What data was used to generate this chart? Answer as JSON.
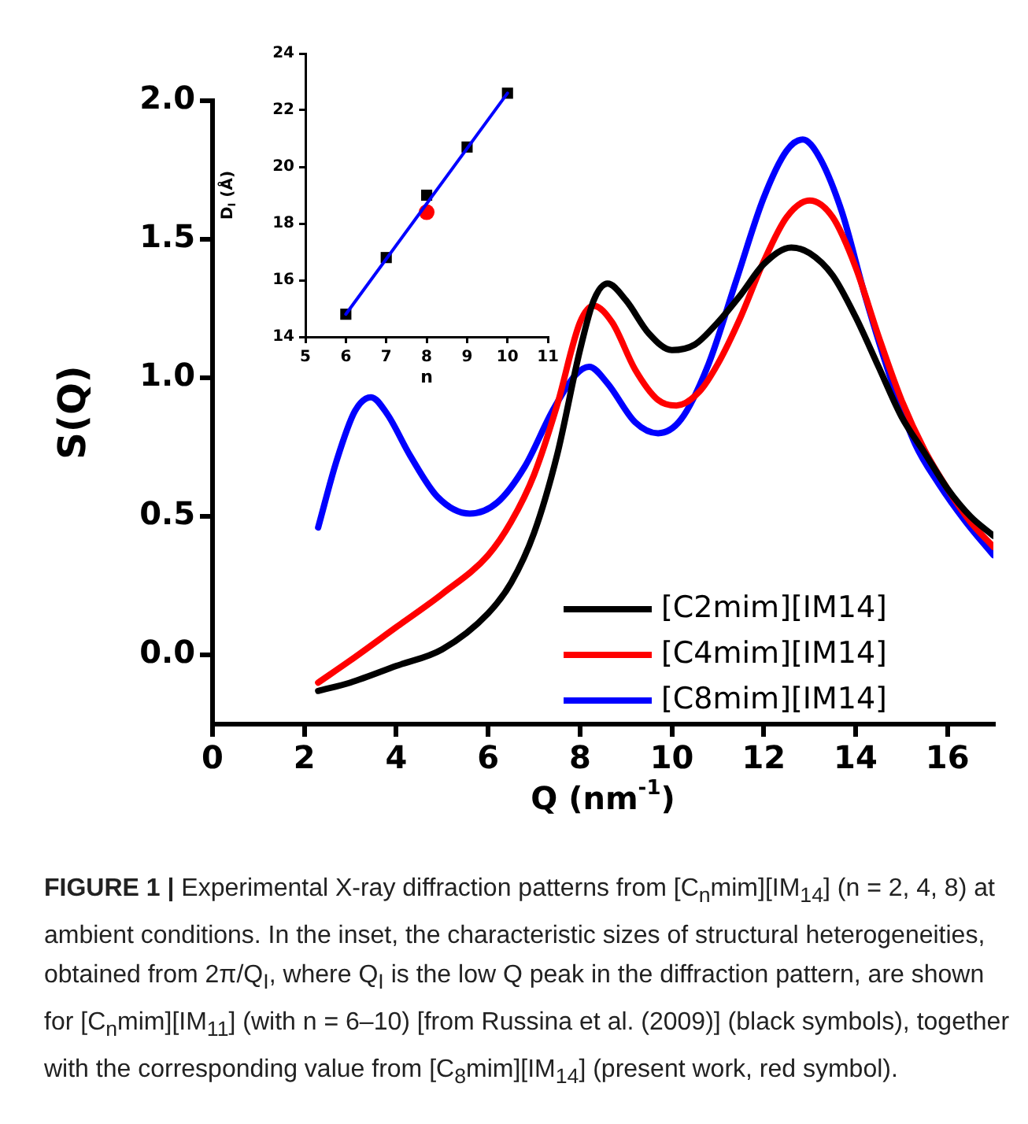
{
  "chart_data": [
    {
      "type": "line",
      "xlabel": "Q (nm$^{-1}$)",
      "ylabel": "S(Q)",
      "xlim": [
        0,
        17
      ],
      "ylim": [
        -0.25,
        2.0
      ],
      "xticks": [
        0,
        2,
        4,
        6,
        8,
        10,
        12,
        14,
        16
      ],
      "yticks": [
        {
          "value": 0,
          "label": "0.0"
        },
        0.5,
        {
          "value": 1,
          "label": "1.0"
        },
        1.5,
        {
          "value": 2,
          "label": "2.0"
        }
      ],
      "grid": false,
      "legend": "bottom right",
      "marker": "none",
      "line_style": "solid",
      "series": [
        {
          "name": "[C2mim][IM14]",
          "color": "#000000",
          "x": [
            2.3,
            3,
            4,
            5,
            6,
            6.5,
            7,
            7.5,
            8,
            8.3,
            8.6,
            9,
            9.5,
            10,
            10.5,
            11,
            11.5,
            12,
            12.6,
            13,
            13.5,
            14,
            14.5,
            15,
            15.5,
            16,
            16.5,
            17
          ],
          "values": [
            -0.13,
            -0.1,
            -0.04,
            0.02,
            0.15,
            0.26,
            0.44,
            0.72,
            1.1,
            1.28,
            1.34,
            1.28,
            1.16,
            1.1,
            1.12,
            1.2,
            1.3,
            1.41,
            1.47,
            1.45,
            1.37,
            1.22,
            1.04,
            0.86,
            0.73,
            0.6,
            0.5,
            0.43
          ]
        },
        {
          "name": "[C4mim][IM14]",
          "color": "#ff0000",
          "x": [
            2.3,
            3,
            4,
            5,
            6,
            6.5,
            7,
            7.5,
            8,
            8.3,
            8.7,
            9.2,
            9.7,
            10.1,
            10.6,
            11,
            11.5,
            12,
            12.5,
            13,
            13.5,
            14,
            14.5,
            15,
            15.5,
            16,
            16.5,
            17
          ],
          "values": [
            -0.1,
            -0.02,
            0.1,
            0.22,
            0.36,
            0.48,
            0.65,
            0.9,
            1.2,
            1.26,
            1.2,
            1.03,
            0.92,
            0.9,
            0.95,
            1.05,
            1.22,
            1.42,
            1.58,
            1.64,
            1.58,
            1.4,
            1.15,
            0.92,
            0.74,
            0.6,
            0.48,
            0.39
          ]
        },
        {
          "name": "[C8mim][IM14]",
          "color": "#0000ff",
          "x": [
            2.3,
            2.7,
            3.1,
            3.45,
            3.8,
            4.3,
            4.9,
            5.6,
            6.2,
            6.8,
            7.4,
            7.9,
            8.2,
            8.6,
            9.2,
            9.7,
            10.2,
            10.8,
            11.4,
            12,
            12.5,
            12.85,
            13.2,
            13.7,
            14.2,
            14.8,
            15.3,
            15.8,
            16.4,
            17
          ],
          "values": [
            0.46,
            0.7,
            0.88,
            0.93,
            0.87,
            0.72,
            0.57,
            0.51,
            0.55,
            0.68,
            0.88,
            1.01,
            1.04,
            0.98,
            0.84,
            0.8,
            0.85,
            1.05,
            1.35,
            1.65,
            1.82,
            1.86,
            1.8,
            1.6,
            1.3,
            0.98,
            0.76,
            0.62,
            0.48,
            0.36
          ]
        }
      ],
      "annotations": [
        "FIGURE 1 |",
        "Experimental X-ray diffraction patterns from [C$_{n}$mim][IM$_{14}$] (n = 2, 4, 8) at ambient conditions. In the inset, the characteristic sizes of structural heterogeneities, obtained from 2π/Q$_{I}$, where Q$_{I}$ is the low Q peak in the diffraction pattern, are shown for [C$_{n}$mim][IM$_{11}$] (with n = 6–10) [from Russina et al. (2009)] (black symbols), together with the corresponding value from [C$_{8}$mim][IM$_{14}$] (present work, red symbol)."
      ]
    },
    {
      "type": "scatter",
      "xlabel": "n",
      "ylabel": "D$_{I}$ (Å)",
      "xlim": [
        5,
        11
      ],
      "ylim": [
        14,
        24
      ],
      "xticks": [
        5,
        6,
        7,
        8,
        9,
        10,
        11
      ],
      "yticks": [
        14,
        16,
        18,
        20,
        22,
        24
      ],
      "grid": false,
      "series": [
        {
          "type": "line",
          "color": "#0000ff",
          "x": [
            6,
            10
          ],
          "values": [
            14.8,
            22.6
          ],
          "marker": "none"
        },
        {
          "color": "#000000",
          "x": [
            6,
            7,
            8,
            9,
            10
          ],
          "values": [
            14.8,
            16.8,
            19.0,
            20.7,
            22.6
          ],
          "marker": "square"
        },
        {
          "color": "#ff0000",
          "x": [
            8
          ],
          "values": [
            18.4
          ],
          "marker": "circle"
        }
      ]
    }
  ]
}
